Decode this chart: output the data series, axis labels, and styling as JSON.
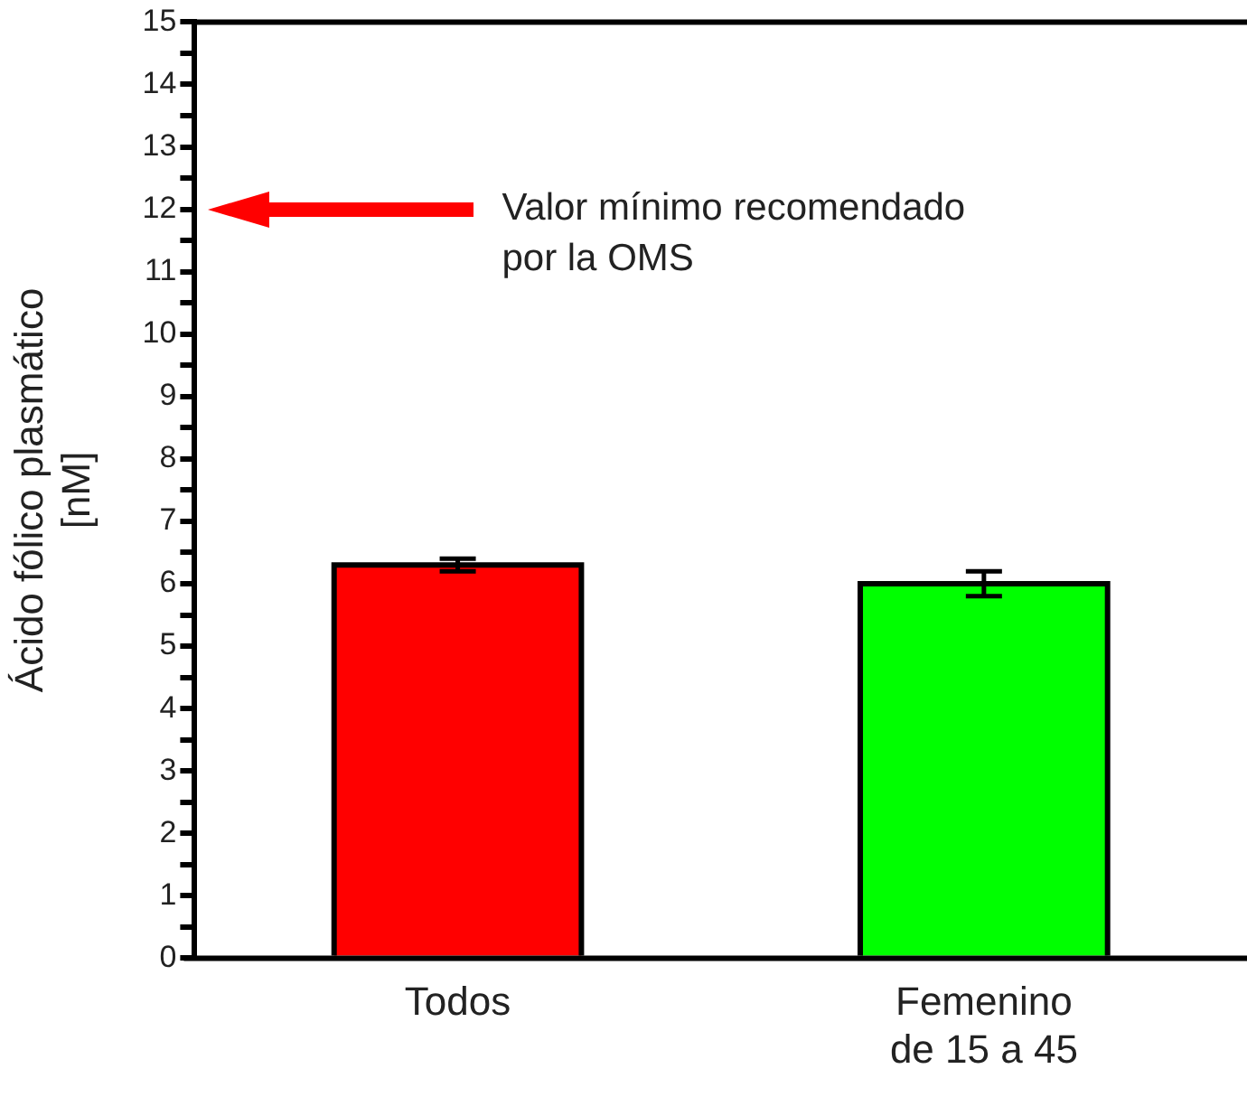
{
  "chart_data": {
    "type": "bar",
    "ylabel": "Ácido fólico plasmático\n[nM]",
    "categories": [
      "Todos",
      "Femenino\nde 15 a 45"
    ],
    "values": [
      6.3,
      6.0
    ],
    "errors": [
      0.1,
      0.2
    ],
    "colors": [
      "#ff0000",
      "#00ff00"
    ],
    "ylim": [
      0,
      15
    ],
    "yticks": [
      0,
      {
        "value": 0.5,
        "label": null
      },
      1,
      {
        "value": 1.5,
        "label": null
      },
      2,
      {
        "value": 2.5,
        "label": null
      },
      3,
      {
        "value": 3.5,
        "label": null
      },
      4,
      {
        "value": 4.5,
        "label": null
      },
      5,
      {
        "value": 5.5,
        "label": null
      },
      6,
      {
        "value": 6.5,
        "label": null
      },
      7,
      {
        "value": 7.5,
        "label": null
      },
      8,
      {
        "value": 8.5,
        "label": null
      },
      9,
      {
        "value": 9.5,
        "label": null
      },
      10,
      {
        "value": 10.5,
        "label": null
      },
      11,
      {
        "value": 11.5,
        "label": null
      },
      12,
      {
        "value": 12.5,
        "label": null
      },
      13,
      {
        "value": 13.5,
        "label": null
      },
      14,
      {
        "value": 14.5,
        "label": null
      },
      15
    ],
    "annotations": [
      "Valor mínimo recomendado por la OMS"
    ],
    "grid": false,
    "legend": false
  }
}
